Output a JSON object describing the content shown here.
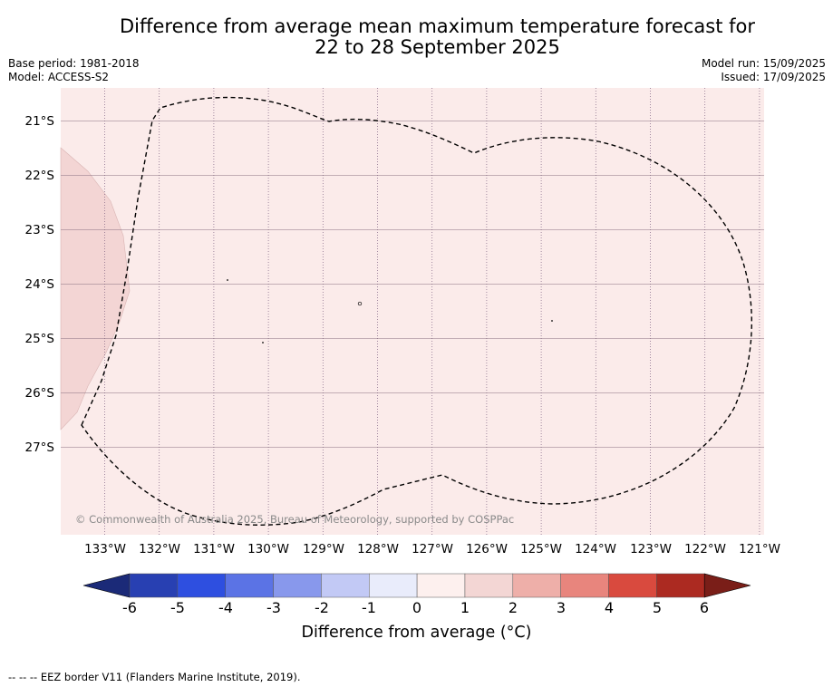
{
  "title": {
    "line1": "Difference from average mean maximum temperature forecast for",
    "line2": "22 to 28 September 2025"
  },
  "meta": {
    "base_period": "Base period: 1981-2018",
    "model": "Model: ACCESS-S2",
    "model_run": "Model run: 15/09/2025",
    "issued": "Issued: 17/09/2025"
  },
  "map": {
    "lat_labels": [
      "21°S",
      "22°S",
      "23°S",
      "24°S",
      "25°S",
      "26°S",
      "27°S"
    ],
    "lon_labels": [
      "133°W",
      "132°W",
      "131°W",
      "130°W",
      "129°W",
      "128°W",
      "127°W",
      "126°W",
      "125°W",
      "124°W",
      "123°W",
      "122°W",
      "121°W"
    ],
    "copyright": "© Commonwealth of Australia 2025, Bureau of Meteorology, supported by COSPPac",
    "colors": {
      "background_anomaly": "#fbebea",
      "west_anomaly": "#f3d5d4"
    }
  },
  "colorbar": {
    "ticks": [
      "-6",
      "-5",
      "-4",
      "-3",
      "-2",
      "-1",
      "0",
      "1",
      "2",
      "3",
      "4",
      "5",
      "6"
    ],
    "colors": [
      "#1b2a78",
      "#2840b2",
      "#2e4fe0",
      "#5b73e5",
      "#8898ec",
      "#c2c9f5",
      "#e9ecfb",
      "#fdf0ee",
      "#f3d6d4",
      "#eeafa9",
      "#e8857d",
      "#d94a3e",
      "#ac2a21",
      "#7a1e18"
    ],
    "label": "Difference from average (°C)"
  },
  "footnote": "--  --  -- EEZ border V11 (Flanders Marine Institute, 2019)."
}
